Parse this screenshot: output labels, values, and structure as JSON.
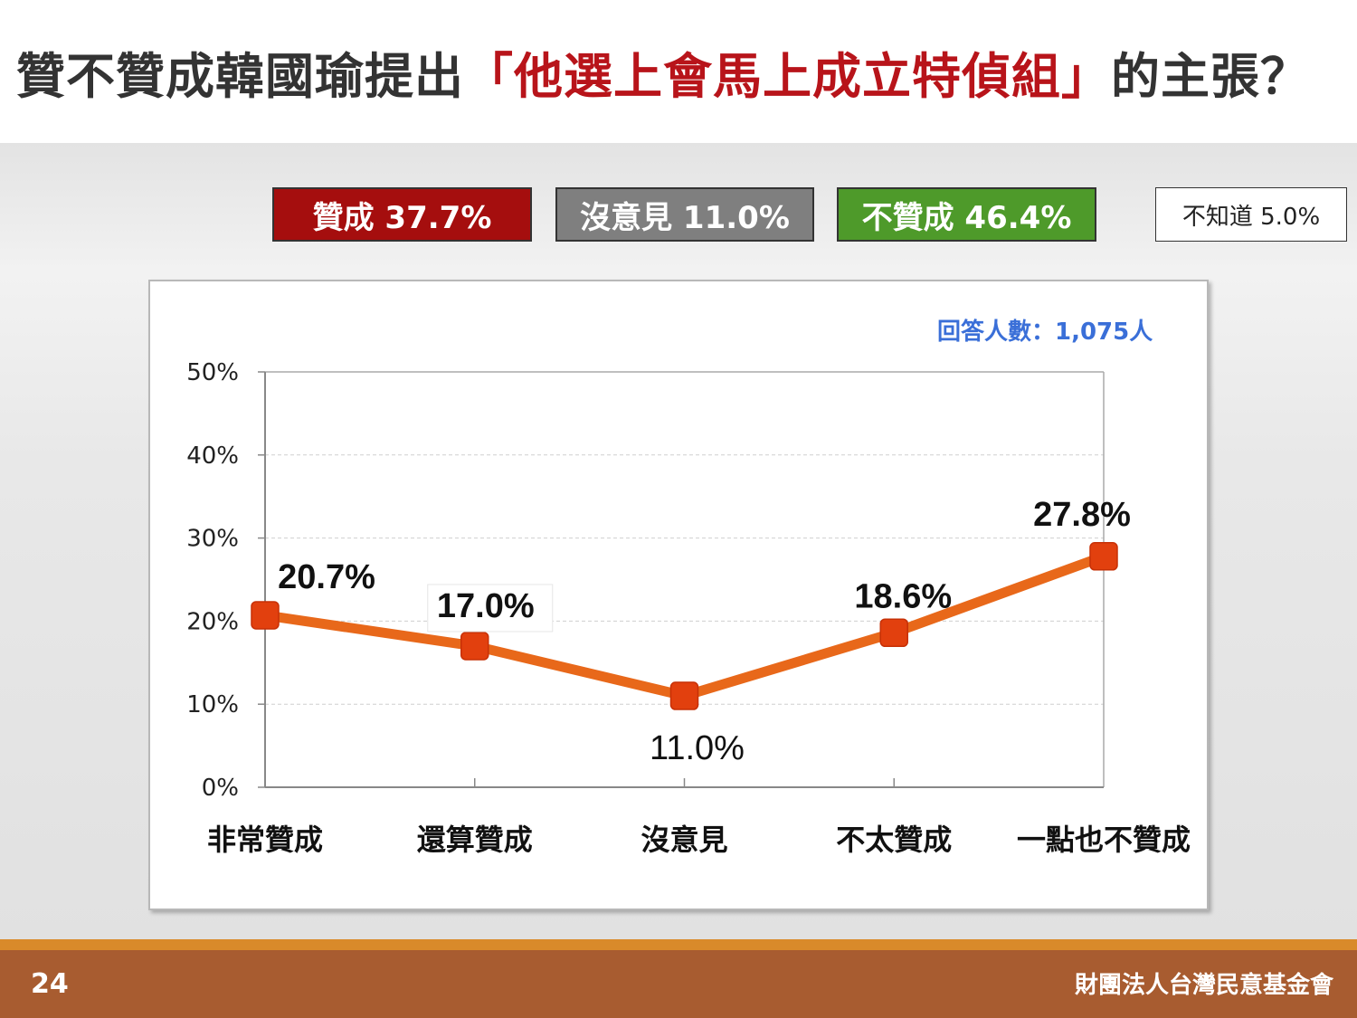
{
  "header": {
    "title_prefix": "贊不贊成韓國瑜提出",
    "title_highlight": "「他選上會馬上成立特偵組」",
    "title_suffix": "的主張？"
  },
  "summary": {
    "agree": "贊成 37.7%",
    "no_opinion": "沒意見 11.0%",
    "disagree": "不贊成 46.4%",
    "dont_know": "不知道 5.0%"
  },
  "respondents": "回答人數：1,075人",
  "footer": {
    "page_number": "24",
    "organization": "財團法人台灣民意基金會"
  },
  "colors": {
    "agree": "#a50e0e",
    "no_opinion": "#7f7f7f",
    "disagree": "#4e9a2a",
    "line": "#e8681a",
    "marker": "#e2400e",
    "highlight_text": "#b8141a",
    "respondents_text": "#3a6fd8"
  },
  "chart_data": {
    "type": "line",
    "categories": [
      "非常贊成",
      "還算贊成",
      "沒意見",
      "不太贊成",
      "一點也不贊成"
    ],
    "values": [
      20.7,
      17.0,
      11.0,
      18.6,
      27.8
    ],
    "data_labels": [
      "20.7%",
      "17.0%",
      "11.0%",
      "18.6%",
      "27.8%"
    ],
    "ylim": [
      0,
      50
    ],
    "yticks": [
      0,
      10,
      20,
      30,
      40,
      50
    ],
    "ytick_labels": [
      "0%",
      "10%",
      "20%",
      "30%",
      "40%",
      "50%"
    ],
    "grid": true
  }
}
